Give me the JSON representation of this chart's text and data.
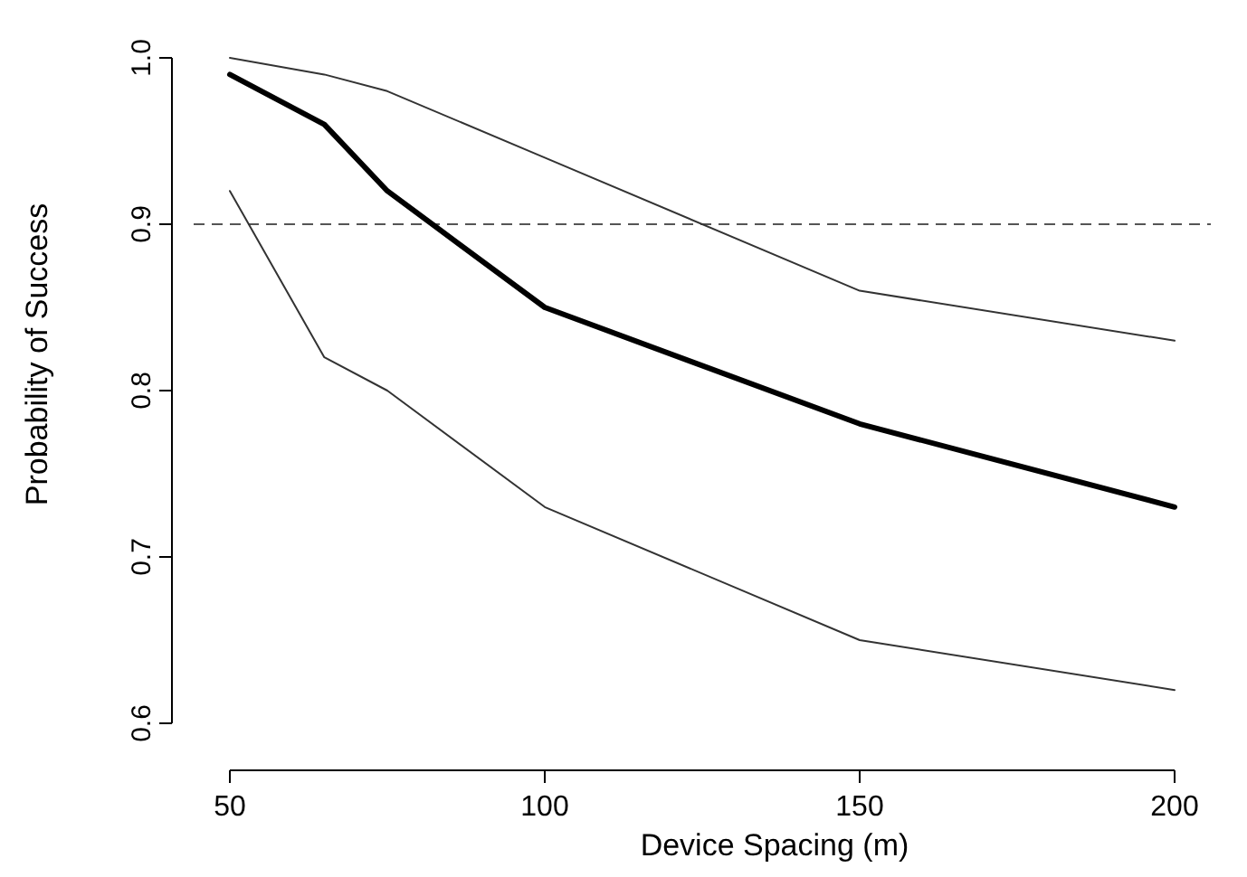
{
  "chart_data": {
    "type": "line",
    "xlabel": "Device Spacing (m)",
    "ylabel": "Probability of Success",
    "x": [
      50,
      65,
      75,
      100,
      150,
      200
    ],
    "xlim": [
      50,
      200
    ],
    "xticks": [
      50,
      100,
      150,
      200
    ],
    "ylim": [
      0.6,
      1.0
    ],
    "yticks": [
      {
        "value": 0.6,
        "label": "0.6"
      },
      {
        "value": 0.7,
        "label": "0.7"
      },
      {
        "value": 0.8,
        "label": "0.8"
      },
      {
        "value": 0.9,
        "label": "0.9"
      },
      {
        "value": 1.0,
        "label": "1.0"
      }
    ],
    "series": [
      {
        "color": "#000000",
        "values": [
          0.99,
          0.96,
          0.92,
          0.85,
          0.78,
          0.73
        ]
      },
      {
        "color": "#333333",
        "values": [
          1.0,
          0.99,
          0.98,
          0.94,
          0.86,
          0.83
        ]
      },
      {
        "color": "#333333",
        "values": [
          0.92,
          0.82,
          0.8,
          0.73,
          0.65,
          0.62
        ]
      }
    ],
    "ref_lines": [
      {
        "axis": "y",
        "value": 0.9,
        "color": "#555555",
        "line_style": "dashed"
      }
    ]
  }
}
